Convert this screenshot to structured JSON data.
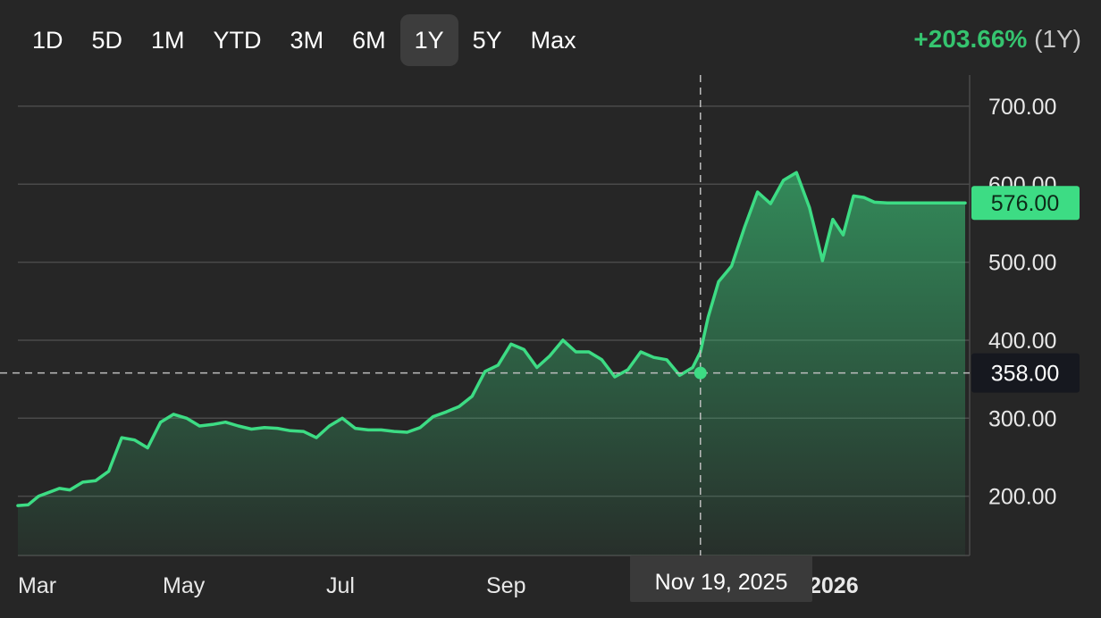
{
  "range_selector": {
    "options": [
      "1D",
      "5D",
      "1M",
      "YTD",
      "3M",
      "6M",
      "1Y",
      "5Y",
      "Max"
    ],
    "selected": "1Y"
  },
  "change": {
    "percent": "+203.66%",
    "period": "(1Y)"
  },
  "colors": {
    "background": "#262626",
    "line": "#3ddc84",
    "positive_text": "#35c46f",
    "current_tag": "#3ddc84",
    "hover_tag": "#16181f",
    "date_tooltip": "#3a3a3a",
    "grid": "#4a4a4a"
  },
  "hover": {
    "date": "Nov 19, 2025",
    "price_label": "358.00",
    "value": 358
  },
  "current": {
    "price_label": "576.00",
    "value": 576
  },
  "chart_data": {
    "type": "area",
    "y_ticks": [
      "700.00",
      "600.00",
      "500.00",
      "400.00",
      "300.00",
      "200.00"
    ],
    "ylim": [
      124,
      740
    ],
    "x_month_labels": [
      "Mar",
      "May",
      "Jul",
      "Sep",
      "2026"
    ],
    "x": [
      0,
      4,
      8,
      12,
      16,
      20,
      25,
      30,
      35,
      40,
      45,
      50,
      55,
      60,
      65,
      70,
      75,
      80,
      85,
      90,
      95,
      100,
      105,
      110,
      115,
      120,
      125,
      130,
      135,
      140,
      145,
      150,
      155,
      160,
      165,
      170,
      175,
      180,
      185,
      190,
      195,
      200,
      205,
      210,
      215,
      220,
      225,
      230,
      235,
      240,
      245,
      250,
      255,
      260,
      263,
      266,
      270,
      275,
      280,
      285,
      290,
      295,
      300,
      305,
      310,
      314,
      318,
      322,
      326,
      330,
      335,
      340,
      345,
      350,
      355,
      360,
      365
    ],
    "values": [
      188,
      189,
      200,
      205,
      210,
      208,
      218,
      220,
      232,
      275,
      272,
      262,
      295,
      305,
      300,
      290,
      292,
      295,
      290,
      286,
      288,
      287,
      284,
      283,
      275,
      290,
      300,
      287,
      285,
      285,
      283,
      282,
      288,
      302,
      308,
      315,
      328,
      360,
      368,
      395,
      388,
      365,
      380,
      400,
      385,
      385,
      375,
      353,
      362,
      385,
      378,
      375,
      355,
      365,
      385,
      430,
      475,
      495,
      545,
      590,
      575,
      605,
      615,
      570,
      502,
      555,
      535,
      585,
      583,
      577,
      576,
      576,
      576,
      576,
      576,
      576,
      576
    ]
  }
}
